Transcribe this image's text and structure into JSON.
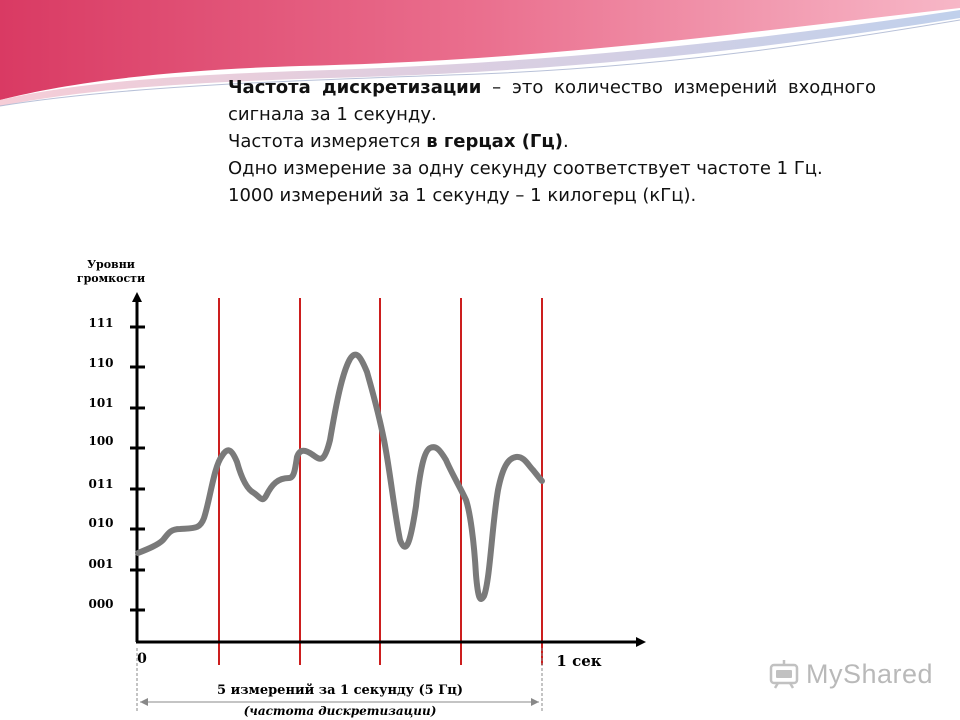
{
  "slide": {
    "paragraph1": {
      "term": "Частота дискретизации",
      "rest": " – это количество измерений входного сигнала за 1 секунду."
    },
    "paragraph2": {
      "before": "Частота измеряется ",
      "bold": "в герцах (Гц)",
      "after": "."
    },
    "paragraph3": "Одно измерение за одну секунду соответствует частоте 1 Гц.",
    "paragraph4": "1000 измерений за 1 секунду – 1 килогерц (кГц)."
  },
  "diagram": {
    "y_axis_title_line1": "Уровни",
    "y_axis_title_line2": "громкости",
    "levels": [
      "000",
      "001",
      "010",
      "011",
      "100",
      "101",
      "110",
      "111"
    ],
    "origin_label": "0",
    "x_end_label": "1 сек",
    "caption_line1": "5 измерений за 1 секунду (5 Гц)",
    "caption_line2": "(частота дискретизации)",
    "sample_count": 5,
    "colors": {
      "signal": "#7a7a7a",
      "sample_lines": "#cc1e1e",
      "axes": "#000000"
    }
  },
  "watermark": {
    "text": "MyShared"
  }
}
